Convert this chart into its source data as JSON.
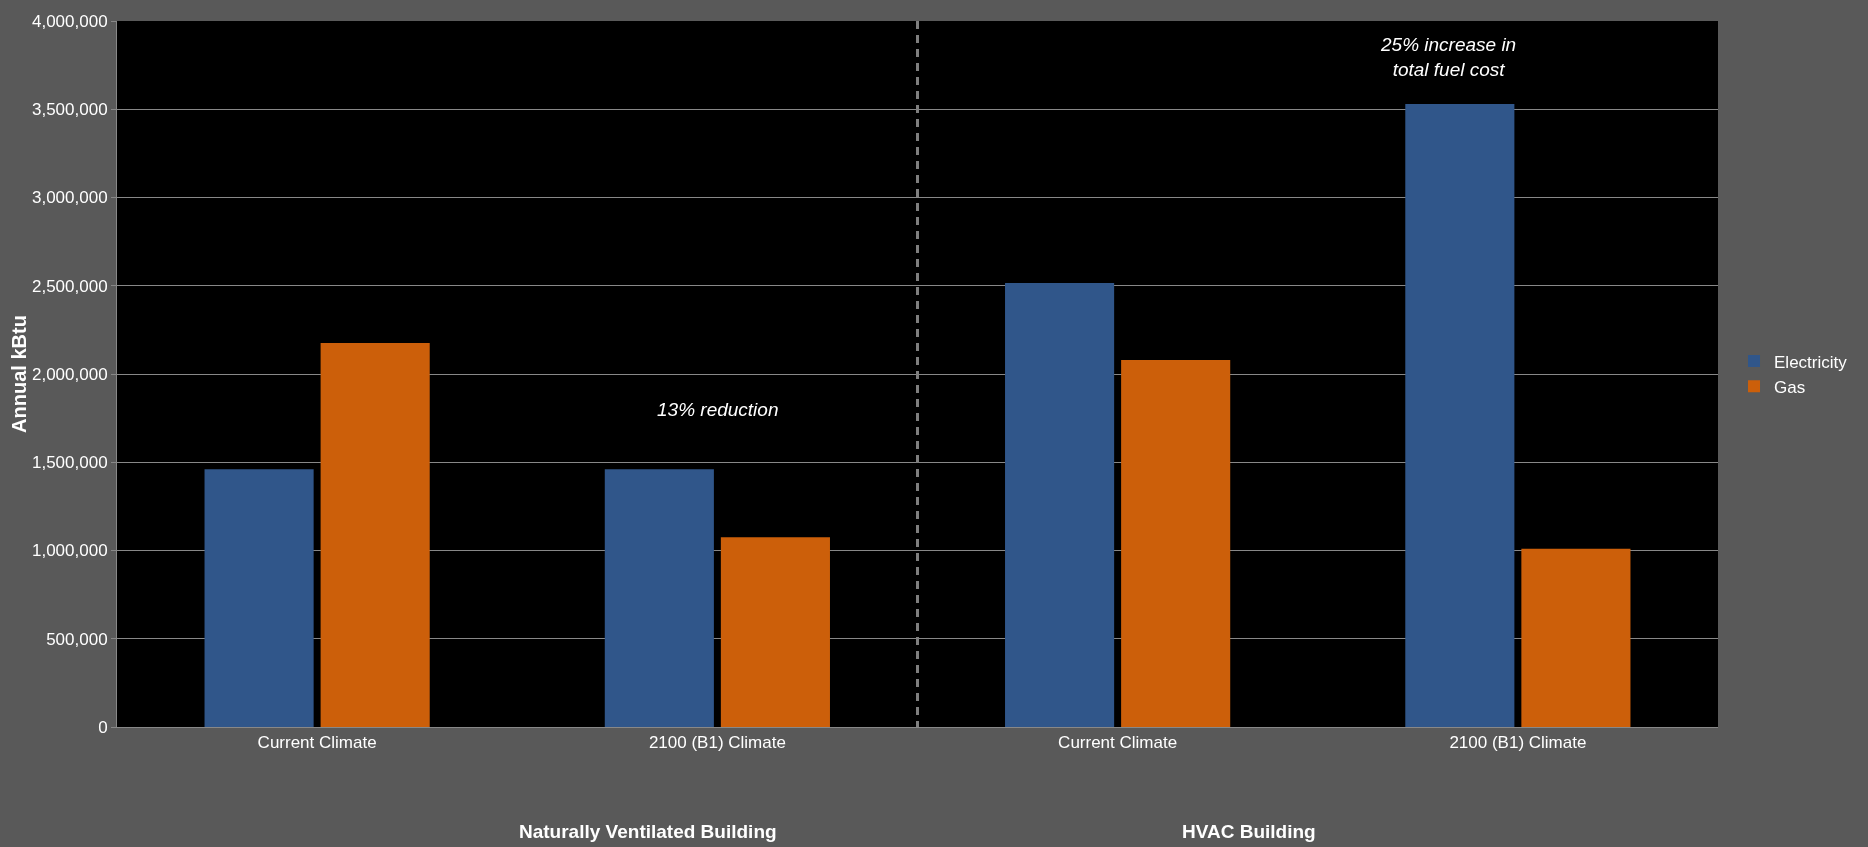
{
  "chart_data": {
    "type": "bar",
    "ylabel": "Annual kBtu",
    "categories": [
      "Current Climate",
      "2100 (B1) Climate",
      "Current Climate",
      "2100 (B1) Climate"
    ],
    "series": [
      {
        "name": "Electricity",
        "color": "#30568a",
        "values": [
          1460000,
          1460000,
          2515000,
          3530000
        ]
      },
      {
        "name": "Gas",
        "color": "#cc5f0a",
        "values": [
          2175000,
          1075000,
          2080000,
          1010000
        ]
      }
    ],
    "ylim": [
      0,
      4000000
    ],
    "yticks": [
      0,
      {
        "value": 500000,
        "label": "500,000"
      },
      {
        "value": 1000000,
        "label": "1,000,000"
      },
      {
        "value": 1500000,
        "label": "1,500,000"
      },
      {
        "value": 2000000,
        "label": "2,000,000"
      },
      {
        "value": 2500000,
        "label": "2,500,000"
      },
      {
        "value": 3000000,
        "label": "3,000,000"
      },
      {
        "value": 3500000,
        "label": "3,500,000"
      },
      {
        "value": 4000000,
        "label": "4,000,000"
      }
    ],
    "grid": "y",
    "legend": "right",
    "annotations": [
      "13% reduction",
      "25% increase in total fuel cost",
      "Naturally Ventilated Building",
      "HVAC Building"
    ]
  }
}
